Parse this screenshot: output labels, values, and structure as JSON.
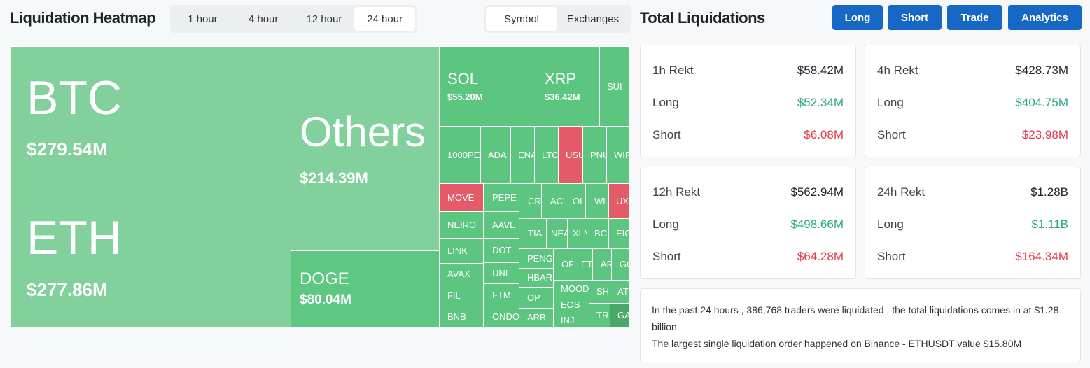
{
  "heatmap": {
    "title": "Liquidation Heatmap",
    "tabs": [
      "1 hour",
      "4 hour",
      "12 hour",
      "24 hour"
    ],
    "active_tab": 3,
    "views": [
      "Symbol",
      "Exchanges"
    ],
    "active_view": 0,
    "tiles": [
      {
        "label": "BTC",
        "value": "$279.54M",
        "color": "#82d19c"
      },
      {
        "label": "ETH",
        "value": "$277.86M",
        "color": "#82d19c"
      },
      {
        "label": "Others",
        "value": "$214.39M",
        "color": "#82d19c"
      },
      {
        "label": "DOGE",
        "value": "$80.04M",
        "color": "#5ec882"
      },
      {
        "label": "SOL",
        "value": "$55.20M",
        "color": "#5cc57f"
      },
      {
        "label": "XRP",
        "value": "$36.42M",
        "color": "#5cc57f"
      },
      {
        "label": "SUI",
        "color": "#5cc57f"
      },
      {
        "label": "1000PE",
        "color": "#5cc57f"
      },
      {
        "label": "ADA",
        "color": "#5cc57f"
      },
      {
        "label": "ENA",
        "color": "#5cc57f"
      },
      {
        "label": "LTC",
        "color": "#5cc57f"
      },
      {
        "label": "USU",
        "color": "#e35a68"
      },
      {
        "label": "PNU",
        "color": "#5cc57f"
      },
      {
        "label": "WIF",
        "color": "#5cc57f"
      },
      {
        "label": "MOVE",
        "color": "#e35a68"
      },
      {
        "label": "NEIRO",
        "color": "#5cc57f"
      },
      {
        "label": "LINK",
        "color": "#5cc57f"
      },
      {
        "label": "AVAX",
        "color": "#5cc57f"
      },
      {
        "label": "FIL",
        "color": "#5cc57f"
      },
      {
        "label": "BNB",
        "color": "#5cc57f"
      },
      {
        "label": "PEPE",
        "color": "#5cc57f"
      },
      {
        "label": "AAVE",
        "color": "#5cc57f"
      },
      {
        "label": "DOT",
        "color": "#5cc57f"
      },
      {
        "label": "UNI",
        "color": "#5cc57f"
      },
      {
        "label": "FTM",
        "color": "#5cc57f"
      },
      {
        "label": "ONDO",
        "color": "#5cc57f"
      },
      {
        "label": "CRV",
        "color": "#5cc57f"
      },
      {
        "label": "ACT",
        "color": "#5cc57f"
      },
      {
        "label": "OL",
        "color": "#5cc57f"
      },
      {
        "label": "WL",
        "color": "#5cc57f"
      },
      {
        "label": "UXL",
        "color": "#e35a68"
      },
      {
        "label": "TIA",
        "color": "#5cc57f"
      },
      {
        "label": "NEA",
        "color": "#5cc57f"
      },
      {
        "label": "XLM",
        "color": "#5cc57f"
      },
      {
        "label": "BCH",
        "color": "#5cc57f"
      },
      {
        "label": "EIG",
        "color": "#5cc57f"
      },
      {
        "label": "PENG",
        "color": "#5cc57f"
      },
      {
        "label": "HBAR",
        "color": "#5cc57f"
      },
      {
        "label": "OP",
        "color": "#5cc57f"
      },
      {
        "label": "ARB",
        "color": "#5cc57f"
      },
      {
        "label": "OR",
        "color": "#5cc57f"
      },
      {
        "label": "ET",
        "color": "#5cc57f"
      },
      {
        "label": "AR",
        "color": "#5cc57f"
      },
      {
        "label": "GO",
        "color": "#5cc57f"
      },
      {
        "label": "MOOD",
        "color": "#5cc57f"
      },
      {
        "label": "EOS",
        "color": "#5cc57f"
      },
      {
        "label": "INJ",
        "color": "#5cc57f"
      },
      {
        "label": "SH",
        "color": "#5cc57f"
      },
      {
        "label": "TR",
        "color": "#5cc57f"
      },
      {
        "label": "ATO",
        "color": "#5cc57f"
      },
      {
        "label": "GA",
        "color": "#4aa86a"
      }
    ]
  },
  "summary": {
    "title": "Total Liquidations",
    "buttons": [
      "Long",
      "Short",
      "Trade",
      "Analytics"
    ],
    "cards": [
      {
        "period": "1h Rekt",
        "total": "$58.42M",
        "long_label": "Long",
        "long": "$52.34M",
        "short_label": "Short",
        "short": "$6.08M"
      },
      {
        "period": "4h Rekt",
        "total": "$428.73M",
        "long_label": "Long",
        "long": "$404.75M",
        "short_label": "Short",
        "short": "$23.98M"
      },
      {
        "period": "12h Rekt",
        "total": "$562.94M",
        "long_label": "Long",
        "long": "$498.66M",
        "short_label": "Short",
        "short": "$64.28M"
      },
      {
        "period": "24h Rekt",
        "total": "$1.28B",
        "long_label": "Long",
        "long": "$1.11B",
        "short_label": "Short",
        "short": "$164.34M"
      }
    ],
    "note": [
      "In the past 24 hours , 386,768 traders were liquidated , the total liquidations comes in at $1.28 billion",
      "The largest single liquidation order happened on Binance - ETHUSDT value $15.80M"
    ]
  }
}
